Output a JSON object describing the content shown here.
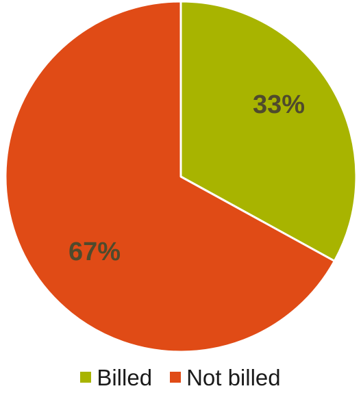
{
  "chart_data": {
    "type": "pie",
    "categories": [
      "Billed",
      "Not billed"
    ],
    "values": [
      33,
      67
    ],
    "data_labels": [
      "33%",
      "67%"
    ],
    "colors": [
      "#a8b400",
      "#e04b16"
    ],
    "start_angle": "12 o'clock",
    "direction": "clockwise",
    "legend_position": "bottom"
  },
  "legend": {
    "items": [
      {
        "label": "Billed",
        "color": "#a8b400"
      },
      {
        "label": "Not billed",
        "color": "#e04b16"
      }
    ]
  }
}
